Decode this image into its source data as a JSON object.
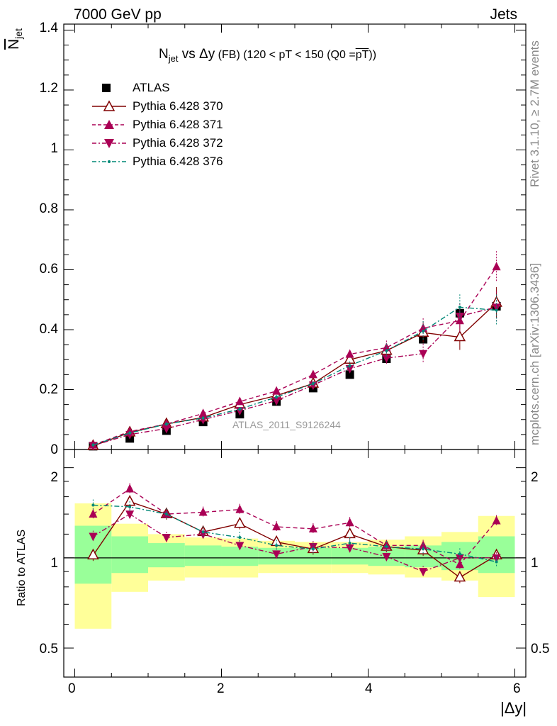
{
  "header": {
    "energy": "7000 GeV pp",
    "category": "Jets",
    "title_main": "N",
    "title_sub": "jet",
    "title_vs": " vs Δy",
    "title_fb": " (FB)",
    "title_range": " (120 < pT < 150 (Q0 =",
    "title_over": "pT",
    "title_end": "))",
    "watermark": "ATLAS_2011_S9126244",
    "rivet_info": "Rivet 3.1.10, ≥ 2.7M events",
    "mcplots_info": "mcplots.cern.ch [arXiv:1306.3436]"
  },
  "axes": {
    "ylabel_main": "N",
    "ylabel_sub": "jet",
    "ylabel_ratio": "Ratio to ATLAS",
    "xlabel": "|Δy|",
    "x_ticks": [
      "0",
      "2",
      "4",
      "6"
    ],
    "y_ticks_main": [
      "0",
      "0.2",
      "0.4",
      "0.6",
      "0.8",
      "1",
      "1.2",
      "1.4"
    ],
    "y_ticks_ratio": [
      "0.5",
      "1",
      "2"
    ]
  },
  "colors": {
    "data": "#000000",
    "p370": "#800000",
    "p371": "#aa0055",
    "p372": "#aa0055",
    "p376": "#008877",
    "band_inner": "#99ff99",
    "band_outer": "#ffff99"
  },
  "chart_data": {
    "type": "line",
    "title": "N_jet vs Δy (FB) (120 < pT < 150 (Q0 = pT))",
    "xlabel": "|Δy|",
    "ylabel": "N_jet",
    "xlim": [
      -0.15,
      6.15
    ],
    "ylim": [
      0,
      1.42
    ],
    "ratio_ylabel": "Ratio to ATLAS",
    "ratio_ylim": [
      0.4,
      2.3
    ],
    "ratio_scale": "log",
    "x_edges": [
      0,
      0.5,
      1,
      1.5,
      2,
      2.5,
      3,
      3.5,
      4,
      4.5,
      5,
      5.5,
      6
    ],
    "x": [
      0.25,
      0.75,
      1.25,
      1.75,
      2.25,
      2.75,
      3.25,
      3.75,
      4.25,
      4.75,
      5.25,
      5.75
    ],
    "legend": [
      "ATLAS",
      "Pythia 6.428 370",
      "Pythia 6.428 371",
      "Pythia 6.428 372",
      "Pythia 6.428 376"
    ],
    "legend_position": "top-left",
    "series": [
      {
        "name": "ATLAS",
        "values": [
          0.011,
          0.037,
          0.063,
          0.092,
          0.118,
          0.16,
          0.205,
          0.25,
          0.303,
          0.368,
          0.455,
          0.478
        ]
      },
      {
        "name": "Pythia 6.428 370",
        "values": [
          0.012,
          0.057,
          0.085,
          0.107,
          0.15,
          0.18,
          0.22,
          0.3,
          0.33,
          0.39,
          0.375,
          0.49
        ]
      },
      {
        "name": "Pythia 6.428 371",
        "values": [
          0.015,
          0.06,
          0.085,
          0.12,
          0.16,
          0.195,
          0.25,
          0.318,
          0.34,
          0.405,
          0.43,
          0.61
        ]
      },
      {
        "name": "Pythia 6.428 372",
        "values": [
          0.013,
          0.05,
          0.07,
          0.1,
          0.13,
          0.163,
          0.215,
          0.27,
          0.305,
          0.32,
          0.445,
          0.475
        ]
      },
      {
        "name": "Pythia 6.428 376",
        "values": [
          0.015,
          0.055,
          0.085,
          0.105,
          0.135,
          0.175,
          0.22,
          0.28,
          0.33,
          0.395,
          0.475,
          0.465
        ]
      }
    ],
    "ratio_series": [
      {
        "name": "Pythia 6.428 370",
        "values": [
          1.02,
          1.54,
          1.4,
          1.22,
          1.3,
          1.13,
          1.07,
          1.2,
          1.09,
          1.06,
          0.86,
          1.02
        ]
      },
      {
        "name": "Pythia 6.428 371",
        "values": [
          1.4,
          1.7,
          1.4,
          1.42,
          1.45,
          1.27,
          1.25,
          1.31,
          1.1,
          1.1,
          0.95,
          1.33
        ]
      },
      {
        "name": "Pythia 6.428 372",
        "values": [
          1.18,
          1.4,
          1.17,
          1.2,
          1.1,
          1.03,
          1.09,
          1.08,
          1.01,
          0.9,
          1.0,
          1.0
        ]
      },
      {
        "name": "Pythia 6.428 376",
        "values": [
          1.5,
          1.48,
          1.4,
          1.22,
          1.17,
          1.1,
          1.07,
          1.12,
          1.09,
          1.07,
          1.03,
          0.97
        ]
      }
    ],
    "ratio_band_inner": [
      [
        0.82,
        1.28
      ],
      [
        0.89,
        1.18
      ],
      [
        0.93,
        1.12
      ],
      [
        0.94,
        1.1
      ],
      [
        0.94,
        1.09
      ],
      [
        0.95,
        1.08
      ],
      [
        0.95,
        1.08
      ],
      [
        0.95,
        1.08
      ],
      [
        0.94,
        1.09
      ],
      [
        0.93,
        1.1
      ],
      [
        0.91,
        1.13
      ],
      [
        0.89,
        1.18
      ]
    ],
    "ratio_band_outer": [
      [
        0.58,
        1.52
      ],
      [
        0.77,
        1.3
      ],
      [
        0.84,
        1.2
      ],
      [
        0.86,
        1.17
      ],
      [
        0.86,
        1.16
      ],
      [
        0.89,
        1.14
      ],
      [
        0.89,
        1.13
      ],
      [
        0.89,
        1.13
      ],
      [
        0.88,
        1.15
      ],
      [
        0.86,
        1.18
      ],
      [
        0.84,
        1.22
      ],
      [
        0.74,
        1.38
      ]
    ]
  }
}
